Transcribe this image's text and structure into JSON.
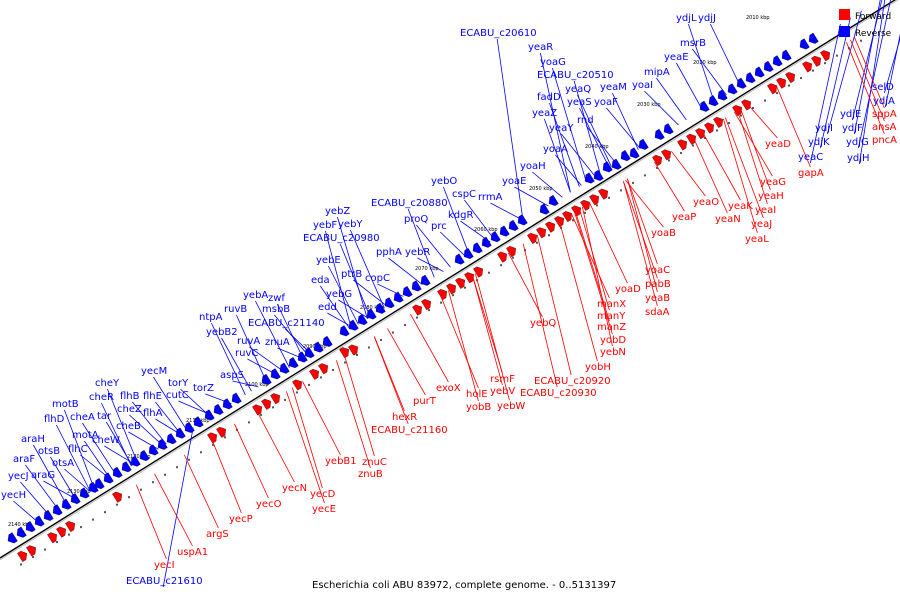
{
  "colors": {
    "forward": "#ff0000",
    "reverse": "#0000ff",
    "line": "#000000",
    "tick": "#888888"
  },
  "caption": "Escherichia coli ABU 83972, complete genome. - 0..5131397",
  "legend": [
    {
      "label": "Forward",
      "color": "#ff0000"
    },
    {
      "label": "Reverse",
      "color": "#0000ff"
    }
  ],
  "kbp_labels": [
    "2010 kbp",
    "2020 kbp",
    "2030 kbp",
    "2040 kbp",
    "2050 kbp",
    "2060 kbp",
    "2070 kbp",
    "2080 kbp",
    "2090 kbp",
    "2100 kbp",
    "2110 kbp",
    "2120 kbp",
    "2130 kbp",
    "2140 kbp"
  ],
  "reverse_genes": [
    "ydjL",
    "ydjJ",
    "msrB",
    "yeaE",
    "mipA",
    "yoaI",
    "ECABU_c20610",
    "yeaR",
    "yoaG",
    "ECABU_c20510",
    "fadD",
    "yeaQ",
    "yeaM",
    "yeaS",
    "yoaF",
    "yeaZ",
    "rnd",
    "yeaY",
    "yoaA",
    "yoaH",
    "yoaE",
    "yebO",
    "cspC",
    "rrmA",
    "ECABU_c20880",
    "kdgR",
    "proQ",
    "prc",
    "yebZ",
    "yebY",
    "yebF",
    "ECABU_c20980",
    "pphA",
    "yebR",
    "yebE",
    "ptrB",
    "copC",
    "eda",
    "yebA",
    "zwf",
    "yebG",
    "msbB",
    "edd",
    "ruvB",
    "ntpA",
    "ECABU_c21140",
    "yebB2",
    "ruvA",
    "znuA",
    "ruvC",
    "yecM",
    "aspS",
    "torY",
    "cutC",
    "torZ",
    "cheY",
    "flhB",
    "flhE",
    "cheR",
    "cheZ",
    "flhA",
    "motB",
    "cheA",
    "tar",
    "cheB",
    "flhD",
    "motA",
    "cheW",
    "araH",
    "otsB",
    "flhC",
    "araF",
    "otsA",
    "yecJ",
    "araG",
    "yecH",
    "ECABU_c21610",
    "selD",
    "ydjA",
    "ydjE",
    "ydjI",
    "ydjF",
    "ydjK",
    "ydjG",
    "ydjH",
    "yeaC"
  ],
  "forward_genes": [
    "sppA",
    "ansA",
    "pncA",
    "yeaD",
    "gapA",
    "yeaG",
    "yeaH",
    "yeaO",
    "yeaK",
    "yeaI",
    "yeaN",
    "yeaJ",
    "yeaP",
    "yeaL",
    "yoaB",
    "yoaC",
    "pabB",
    "yoaD",
    "yeaB",
    "sdaA",
    "manX",
    "manY",
    "manZ",
    "yobD",
    "yebN",
    "yebQ",
    "yobH",
    "rsmF",
    "ECABU_c20920",
    "exoX",
    "yebV",
    "ECABU_c20930",
    "holE",
    "yobB",
    "yebW",
    "purT",
    "hexR",
    "ECABU_c21160",
    "yebB1",
    "znuC",
    "znuB",
    "yecN",
    "yecD",
    "yecO",
    "yecE",
    "yecP",
    "argS",
    "uspA1",
    "yecI"
  ]
}
